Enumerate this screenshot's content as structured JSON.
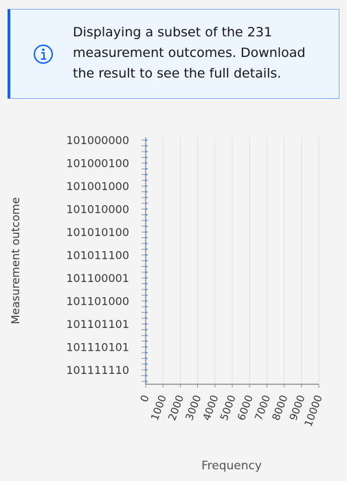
{
  "notification": {
    "message": "Displaying a subset of the 231 measurement outcomes. Download the result to see the full details."
  },
  "chart_data": {
    "type": "barh",
    "y_label": "Measurement outcome",
    "x_label": "Frequency",
    "categories": [
      "101000000",
      null,
      null,
      null,
      "101000100",
      null,
      null,
      null,
      "101001000",
      null,
      null,
      null,
      "101010000",
      null,
      null,
      null,
      "101010100",
      null,
      null,
      null,
      "101011100",
      null,
      null,
      null,
      "101100001",
      null,
      null,
      null,
      "101101000",
      null,
      null,
      null,
      "101101101",
      null,
      null,
      null,
      "101110101",
      null,
      null,
      null,
      "101111110",
      null,
      null
    ],
    "values": [
      100,
      100,
      100,
      100,
      100,
      100,
      100,
      100,
      100,
      100,
      100,
      100,
      100,
      100,
      100,
      100,
      100,
      100,
      100,
      100,
      100,
      100,
      100,
      100,
      100,
      100,
      100,
      100,
      100,
      100,
      100,
      100,
      100,
      100,
      100,
      100,
      100,
      100,
      100,
      100,
      100,
      100,
      100
    ],
    "color": "#4589ff",
    "xlim": [
      0,
      10000
    ],
    "xticks": [
      0,
      1000,
      2000,
      3000,
      4000,
      5000,
      6000,
      7000,
      8000,
      9000,
      10000
    ],
    "grid": true
  }
}
